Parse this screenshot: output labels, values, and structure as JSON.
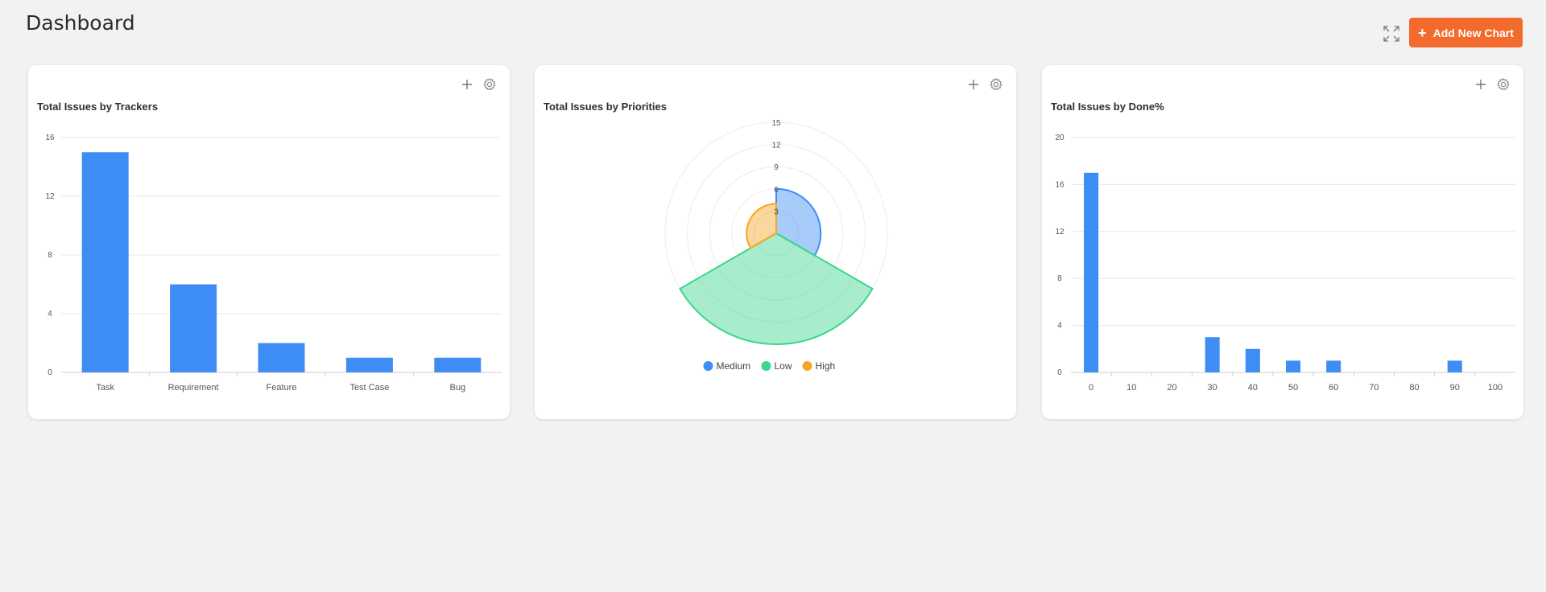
{
  "page": {
    "title": "Dashboard"
  },
  "toolbar": {
    "add_label": "Add New Chart",
    "add_icon": "plus-icon",
    "expand_icon": "expand-icon"
  },
  "colors": {
    "bar": "#3d8df5",
    "accent": "#f26a2c",
    "medium": "#3d8df5",
    "low": "#3bd68e",
    "high": "#f5a623"
  },
  "charts": [
    {
      "id": "trackers",
      "title": "Total Issues by Trackers"
    },
    {
      "id": "priorities",
      "title": "Total Issues by Priorities"
    },
    {
      "id": "done",
      "title": "Total Issues by Done%"
    }
  ],
  "chart_data": [
    {
      "type": "bar",
      "title": "Total Issues by Trackers",
      "categories": [
        "Task",
        "Requirement",
        "Feature",
        "Test Case",
        "Bug"
      ],
      "values": [
        15,
        6,
        2,
        1,
        1
      ],
      "ylim": [
        0,
        16
      ],
      "yticks": [
        0,
        4,
        8,
        12,
        16
      ],
      "grid": true
    },
    {
      "type": "pie",
      "subtype": "polar-area",
      "title": "Total Issues by Priorities",
      "categories": [
        "Medium",
        "Low",
        "High"
      ],
      "values": [
        6,
        15,
        4
      ],
      "rlim": [
        0,
        15
      ],
      "rticks": [
        3,
        6,
        9,
        12,
        15
      ],
      "legend": "bottom"
    },
    {
      "type": "bar",
      "title": "Total Issues by Done%",
      "categories": [
        "0",
        "10",
        "20",
        "30",
        "40",
        "50",
        "60",
        "70",
        "80",
        "90",
        "100"
      ],
      "values": [
        17,
        0,
        0,
        3,
        2,
        1,
        1,
        0,
        0,
        1,
        0
      ],
      "ylim": [
        0,
        20
      ],
      "yticks": [
        0,
        4,
        8,
        12,
        16,
        20
      ],
      "grid": true
    }
  ]
}
